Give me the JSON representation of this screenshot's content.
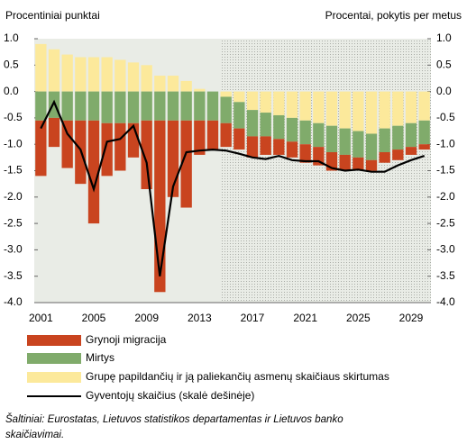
{
  "chart_data": {
    "type": "stacked-bar-line",
    "y_label": "Procentiniai punktai",
    "y2_label": "Procentai, pokytis per metus",
    "categories": [
      "2001",
      null,
      null,
      null,
      "2005",
      null,
      null,
      null,
      "2009",
      null,
      null,
      null,
      "2013",
      null,
      null,
      null,
      "2017",
      null,
      null,
      null,
      "2021",
      null,
      null,
      null,
      "2025",
      null,
      null,
      null,
      "2029",
      null
    ],
    "ylim": [
      -4,
      1
    ],
    "yticks": [
      {
        "value": 1,
        "label": "1.0"
      },
      0.5,
      {
        "value": 0,
        "label": "0.0"
      },
      -0.5,
      {
        "value": -1,
        "label": "-1.0"
      },
      -1.5,
      {
        "value": -2,
        "label": "-2.0"
      },
      -2.5,
      {
        "value": -3,
        "label": "-3.0"
      },
      -3.5,
      {
        "value": -4,
        "label": "-4.0"
      }
    ],
    "y2lim": [
      -4,
      1
    ],
    "y2ticks": [
      {
        "value": 1,
        "label": "1.0"
      },
      0.5,
      {
        "value": 0,
        "label": "0.0"
      },
      -0.5,
      {
        "value": -1,
        "label": "-1.0"
      },
      -1.5,
      {
        "value": -2,
        "label": "-2.0"
      },
      -2.5,
      {
        "value": -3,
        "label": "-3.0"
      },
      -3.5,
      {
        "value": -4,
        "label": "-4.0"
      }
    ],
    "series": [
      {
        "name": "Grynoji migracija",
        "color": "#c9441f",
        "values": [
          -1.05,
          -0.55,
          -0.9,
          -1.2,
          -1.95,
          -1.0,
          -0.9,
          -0.65,
          -1.3,
          -3.25,
          -1.45,
          -1.65,
          -0.65,
          -0.55,
          -0.45,
          -0.4,
          -0.4,
          -0.35,
          -0.3,
          -0.3,
          -0.35,
          -0.35,
          -0.35,
          -0.3,
          -0.25,
          -0.2,
          -0.2,
          -0.2,
          -0.15,
          -0.1
        ]
      },
      {
        "name": "Mirtys",
        "color": "#80ab6b",
        "values": [
          -0.55,
          -0.5,
          -0.55,
          -0.55,
          -0.55,
          -0.6,
          -0.6,
          -0.6,
          -0.55,
          -0.55,
          -0.55,
          -0.55,
          -0.55,
          -0.55,
          -0.5,
          -0.5,
          -0.5,
          -0.45,
          -0.45,
          -0.45,
          -0.45,
          -0.45,
          -0.5,
          -0.5,
          -0.5,
          -0.5,
          -0.45,
          -0.45,
          -0.45,
          -0.45
        ]
      },
      {
        "name": "Grupę papildančių ir ją paliekančių asmenų skaičiaus skirtumas",
        "color": "#fce99b",
        "values": [
          0.9,
          0.8,
          0.7,
          0.65,
          0.65,
          0.65,
          0.6,
          0.55,
          0.5,
          0.3,
          0.3,
          0.2,
          0.05,
          0.0,
          -0.1,
          -0.2,
          -0.35,
          -0.4,
          -0.45,
          -0.5,
          -0.55,
          -0.6,
          -0.65,
          -0.7,
          -0.75,
          -0.8,
          -0.7,
          -0.65,
          -0.6,
          -0.55
        ]
      },
      {
        "name": "Gyventojų skaičius (skalė dešinėje)",
        "color": "#000000",
        "axis": "y2",
        "values": [
          -0.7,
          -0.2,
          -0.8,
          -1.1,
          -1.85,
          -0.95,
          -0.9,
          -0.65,
          -1.35,
          -3.5,
          -1.8,
          -1.15,
          -1.12,
          -1.1,
          -1.12,
          -1.18,
          -1.25,
          -1.28,
          -1.22,
          -1.3,
          -1.32,
          -1.32,
          -1.45,
          -1.5,
          -1.48,
          -1.52,
          -1.52,
          -1.4,
          -1.3,
          -1.22
        ]
      }
    ],
    "source": [
      "Šaltiniai: Eurostatas, Lietuvos statistikos departamentas ir Lietuvos banko",
      "skaičiavimai."
    ]
  }
}
